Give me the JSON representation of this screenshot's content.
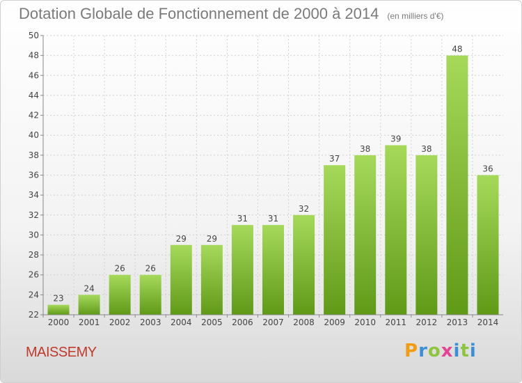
{
  "title": "Dotation Globale de Fonctionnement de 2000 à 2014",
  "subtitle": "(en milliers d'€)",
  "commune": "MAISSEMY",
  "brand": {
    "letters": [
      "P",
      "r",
      "o",
      "x",
      "i",
      "t",
      "i"
    ],
    "colors": [
      "#f39c12",
      "#3a8fd6",
      "#8cc63f",
      "#e84393",
      "#3a8fd6",
      "#8cc63f",
      "#3a8fd6"
    ]
  },
  "chart_data": {
    "type": "bar",
    "categories": [
      "2000",
      "2001",
      "2002",
      "2003",
      "2004",
      "2005",
      "2006",
      "2007",
      "2008",
      "2009",
      "2010",
      "2011",
      "2012",
      "2013",
      "2014"
    ],
    "values": [
      23,
      24,
      26,
      26,
      29,
      29,
      31,
      31,
      32,
      37,
      38,
      39,
      38,
      48,
      36
    ],
    "ylim": [
      22,
      50
    ],
    "yticks": [
      22,
      24,
      26,
      28,
      30,
      32,
      34,
      36,
      38,
      40,
      42,
      44,
      46,
      48,
      50
    ],
    "grid": true,
    "bar_color": "#7ab829"
  }
}
